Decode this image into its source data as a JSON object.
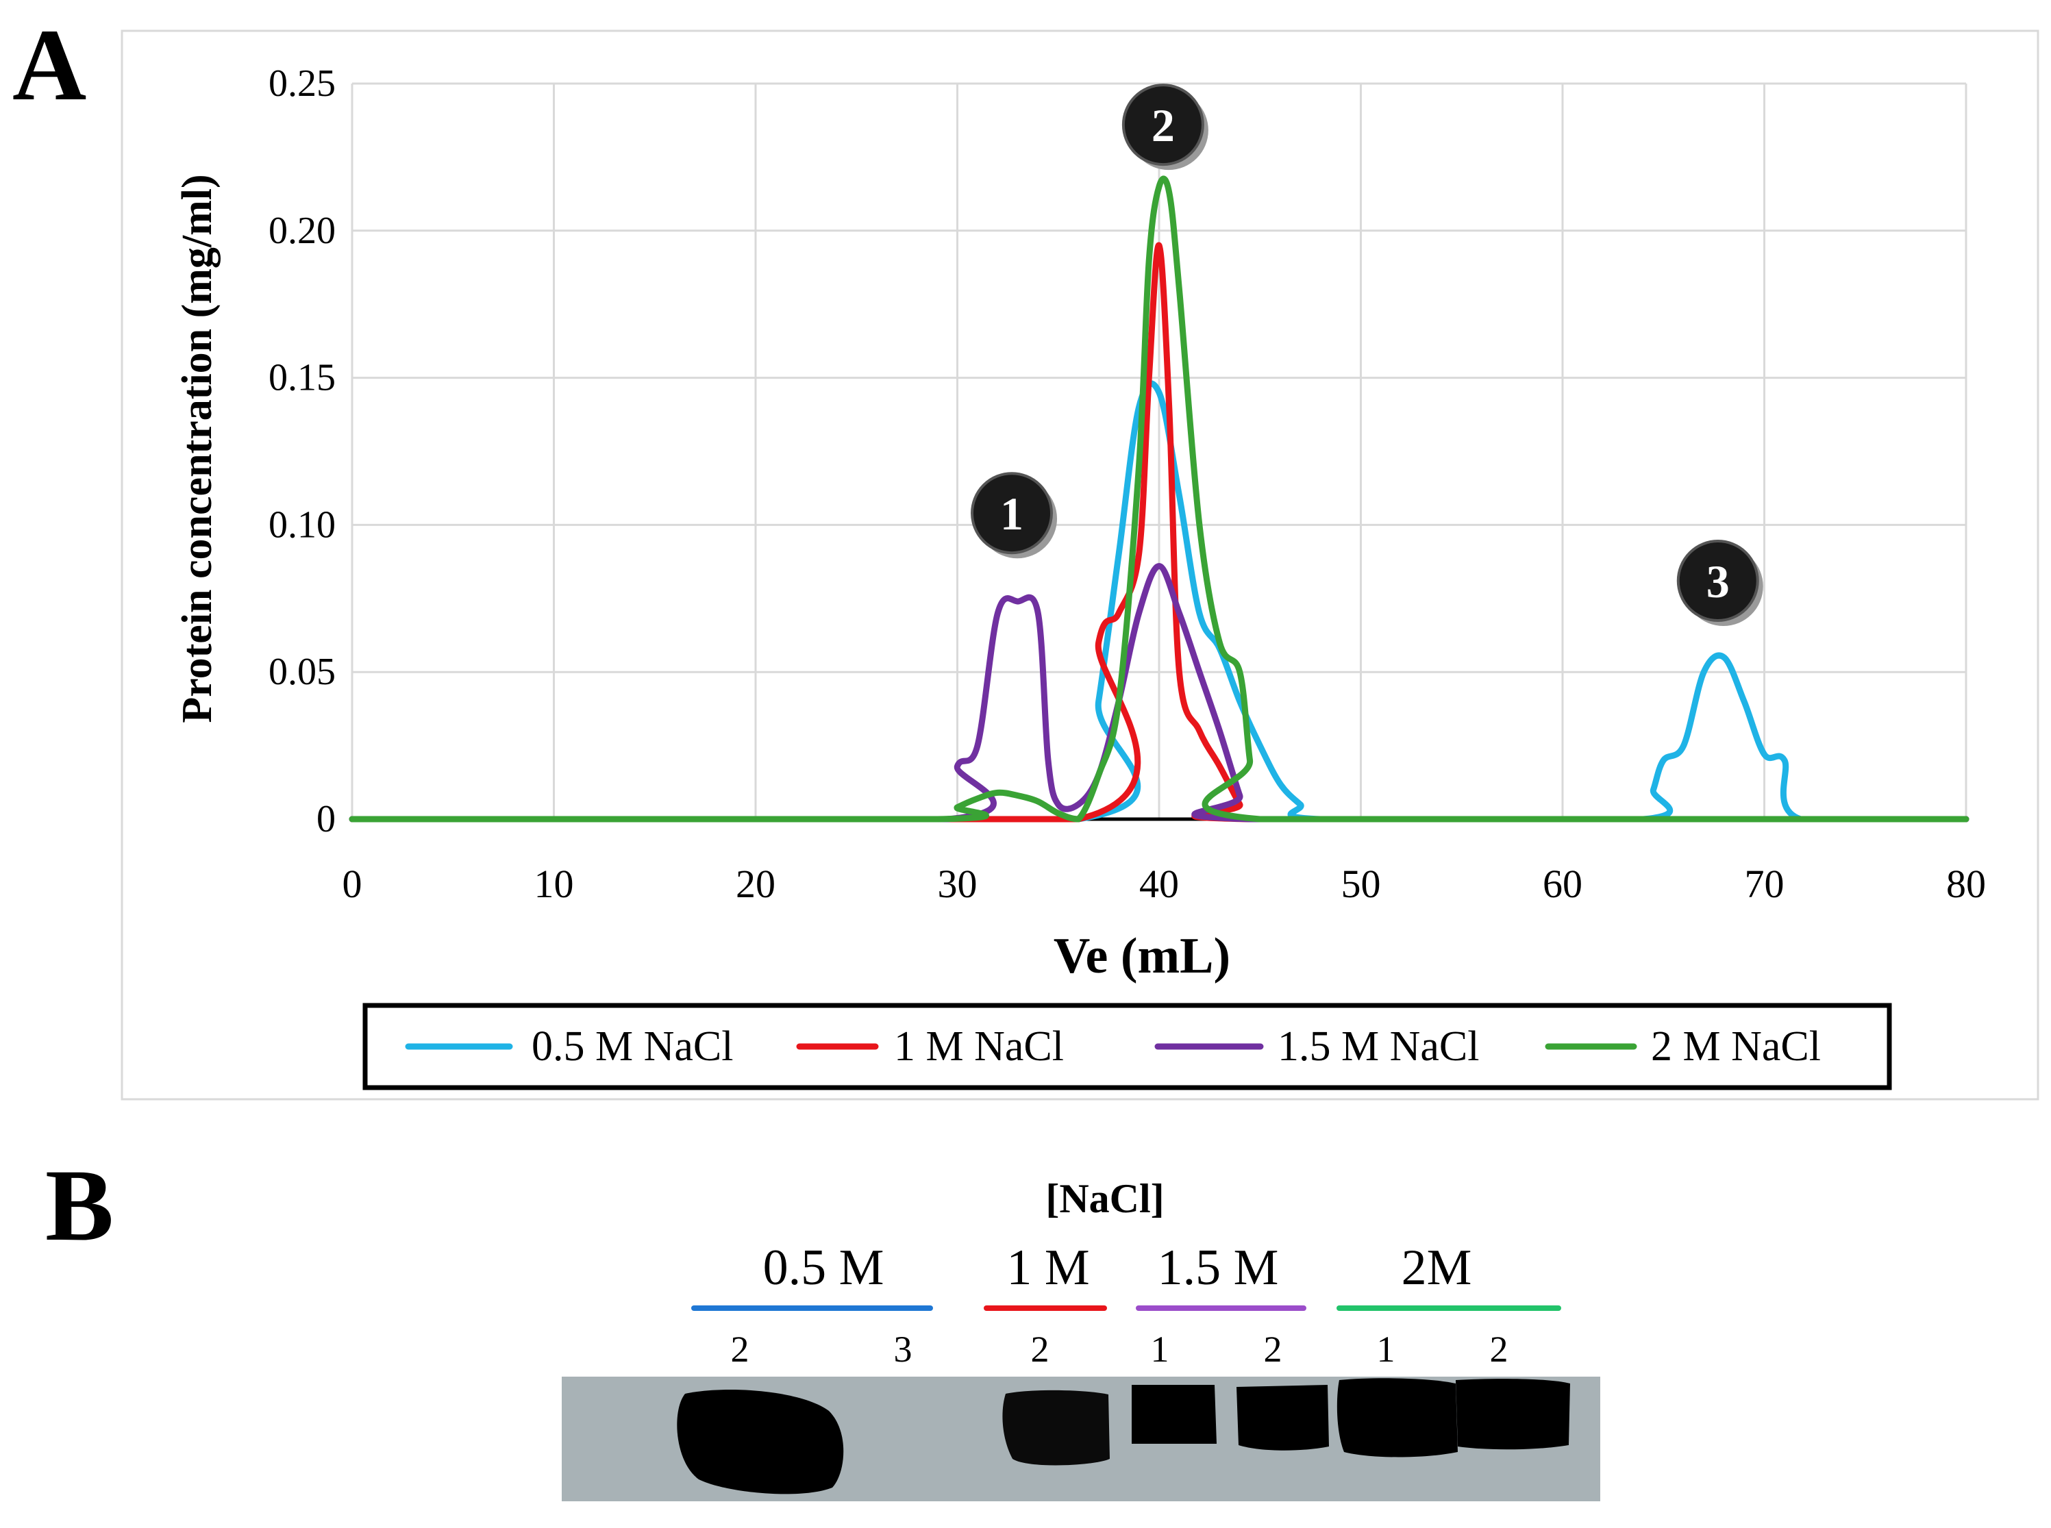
{
  "panel_a_label": "A",
  "panel_b_label": "B",
  "chart_data": {
    "type": "line",
    "title": "",
    "xlabel": "Ve (mL)",
    "ylabel": "Protein concentration (mg/ml)",
    "xlim": [
      0,
      80
    ],
    "ylim": [
      0,
      0.25
    ],
    "x_ticks": [
      0,
      10,
      20,
      30,
      40,
      50,
      60,
      70,
      80
    ],
    "x_tick_labels": [
      "0",
      "10",
      "20",
      "30",
      "40",
      "50",
      "60",
      "70",
      "80"
    ],
    "y_ticks": [
      0,
      0.05,
      0.1,
      0.15,
      0.2,
      0.25
    ],
    "y_tick_labels": [
      "0",
      "0.05",
      "0.10",
      "0.15",
      "0.20",
      "0.25"
    ],
    "grid": true,
    "legend_position": "bottom",
    "series": [
      {
        "name": "0.5 M NaCl",
        "color": "#1fb3e6",
        "x": [
          0,
          36,
          37,
          38,
          39,
          40,
          41,
          42,
          43,
          44,
          45,
          46,
          47,
          48,
          64,
          64.5,
          65,
          66,
          67,
          68,
          69,
          70,
          71,
          71.8,
          80
        ],
        "y": [
          0,
          0,
          0.04,
          0.09,
          0.14,
          0.145,
          0.11,
          0.07,
          0.058,
          0.04,
          0.025,
          0.012,
          0.005,
          0,
          0,
          0.01,
          0.02,
          0.025,
          0.05,
          0.055,
          0.04,
          0.022,
          0.02,
          0,
          0
        ]
      },
      {
        "name": "1 M NaCl",
        "color": "#e8151b",
        "x": [
          0,
          36,
          37,
          38,
          39,
          39.5,
          40,
          40.5,
          41,
          42,
          43,
          44,
          44.5,
          80
        ],
        "y": [
          0,
          0,
          0.06,
          0.07,
          0.09,
          0.15,
          0.195,
          0.14,
          0.05,
          0.03,
          0.018,
          0.005,
          0,
          0
        ]
      },
      {
        "name": "1.5 M NaCl",
        "color": "#7030a0",
        "x": [
          0,
          29.5,
          30,
          31,
          32,
          33,
          34,
          34.5,
          35,
          36,
          37,
          38,
          39,
          40,
          41,
          42,
          43,
          44,
          44.5,
          80
        ],
        "y": [
          0,
          0,
          0.018,
          0.025,
          0.07,
          0.074,
          0.07,
          0.02,
          0.005,
          0.005,
          0.015,
          0.04,
          0.07,
          0.086,
          0.07,
          0.05,
          0.03,
          0.008,
          0,
          0
        ]
      },
      {
        "name": "2 M NaCl",
        "color": "#3aa335",
        "x": [
          0,
          29,
          30,
          31,
          32,
          33,
          34,
          35,
          36,
          37,
          38,
          39,
          39.5,
          40,
          40.5,
          41,
          42,
          43,
          44,
          44.5,
          45,
          80
        ],
        "y": [
          0,
          0,
          0.004,
          0.007,
          0.009,
          0.008,
          0.006,
          0.002,
          0,
          0.015,
          0.04,
          0.12,
          0.19,
          0.215,
          0.213,
          0.18,
          0.1,
          0.06,
          0.05,
          0.02,
          0,
          0
        ]
      }
    ],
    "peak_markers": [
      {
        "label": "1",
        "x": 32.7,
        "y": 0.104
      },
      {
        "label": "2",
        "x": 40.2,
        "y": 0.236
      },
      {
        "label": "3",
        "x": 67.7,
        "y": 0.081
      }
    ]
  },
  "blot": {
    "title": "[NaCl]",
    "groups": [
      {
        "label": "0.5 M",
        "color": "#1f77d4",
        "lanes": [
          "2",
          "3"
        ]
      },
      {
        "label": "1 M",
        "color": "#e8151b",
        "lanes": [
          "2"
        ]
      },
      {
        "label": "1.5 M",
        "color": "#9b4dca",
        "lanes": [
          "1",
          "2"
        ]
      },
      {
        "label": "2M",
        "color": "#22c36a",
        "lanes": [
          "1",
          "2"
        ]
      }
    ]
  }
}
